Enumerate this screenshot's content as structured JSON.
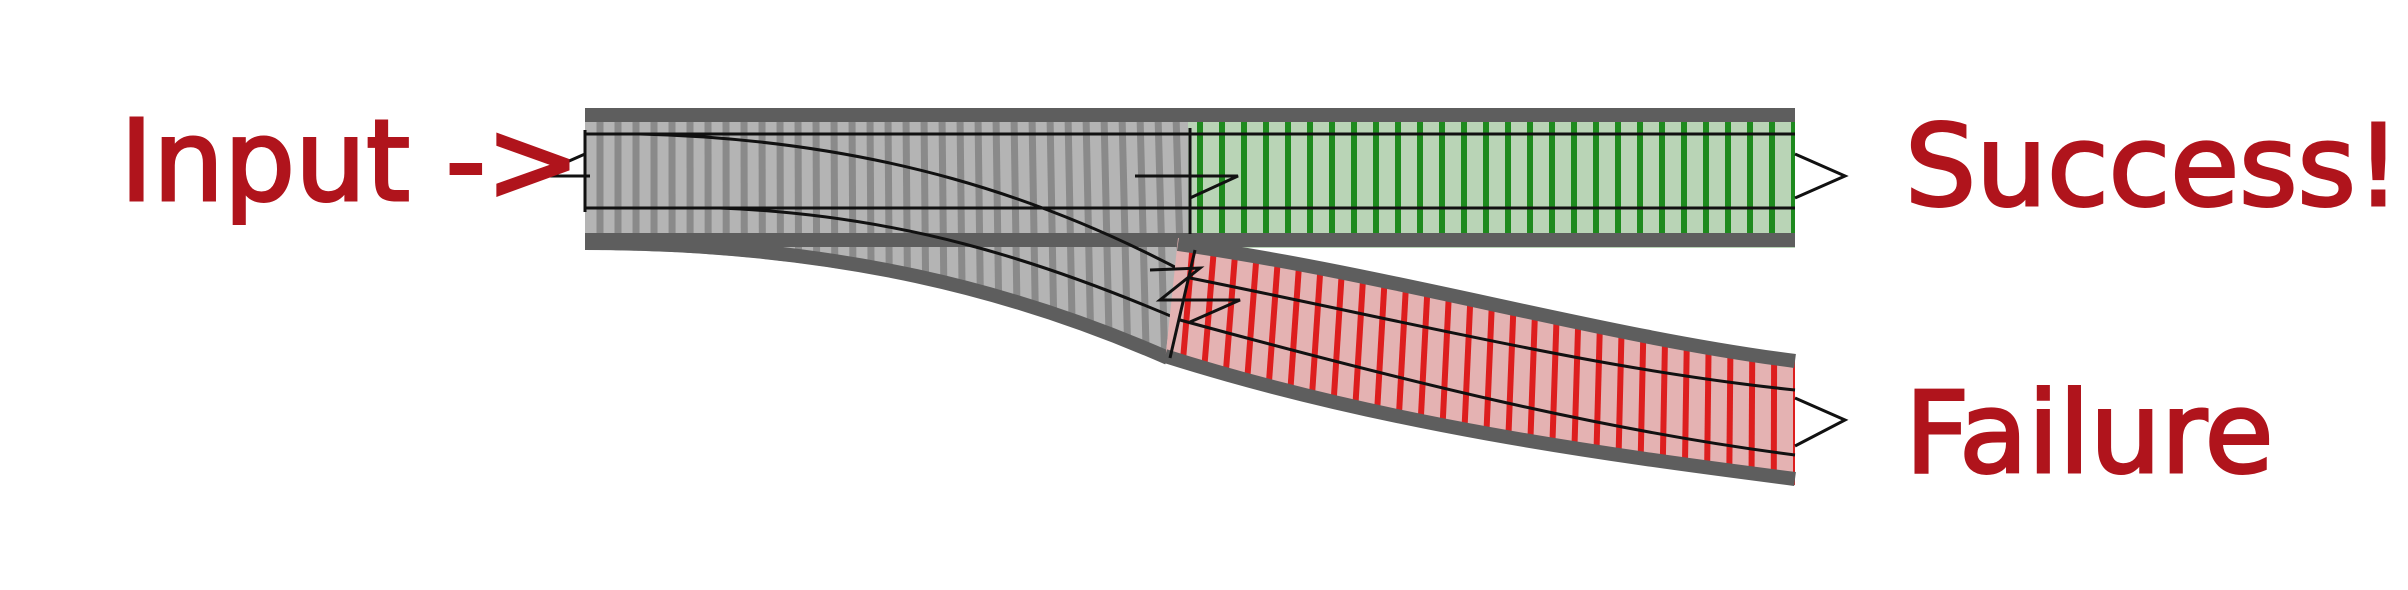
{
  "labels": {
    "input": "Input ->",
    "success": "Success!",
    "failure": "Failure"
  },
  "colors": {
    "label": "#b0141c",
    "rail_border": "#5e5e5e",
    "bed_neutral": "#b4b4b4",
    "tie_neutral": "#8a8a8a",
    "bed_success": "#b9d4b6",
    "tie_success": "#1e8a1e",
    "bed_failure": "#e4b2b2",
    "tie_failure": "#dd1e1e",
    "line": "#111111"
  }
}
